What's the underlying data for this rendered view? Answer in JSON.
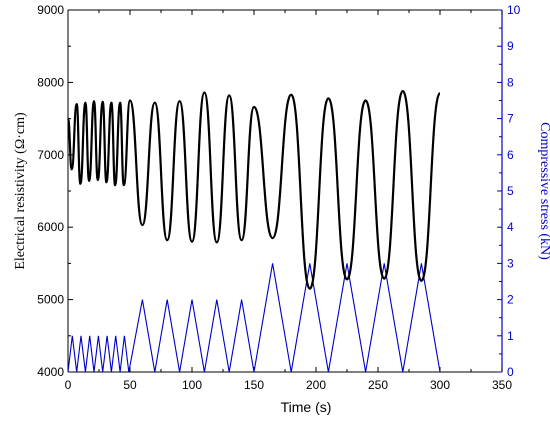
{
  "chart_data": {
    "type": "line",
    "xlabel": "Time (s)",
    "ylabel_left": "Electrical resistivity (Ω·cm)",
    "ylabel_right": "Compressive stress (kN)",
    "xlim": [
      0,
      350
    ],
    "ylim_left": [
      4000,
      9000
    ],
    "ylim_right": [
      0,
      10
    ],
    "x_ticks": [
      0,
      50,
      100,
      150,
      200,
      250,
      300,
      350
    ],
    "y_left_ticks": [
      4000,
      5000,
      6000,
      7000,
      8000,
      9000
    ],
    "y_right_ticks": [
      0,
      1,
      2,
      3,
      4,
      5,
      6,
      7,
      8,
      9,
      10
    ],
    "grid": false,
    "colors": {
      "resistivity": "#000000",
      "stress": "#0000cc",
      "axis_right": "#0000cc"
    },
    "series": [
      {
        "axis": "left",
        "x": [
          0,
          3,
          7,
          10,
          14,
          17,
          21,
          24,
          28,
          31,
          35,
          38,
          42,
          45,
          50,
          60,
          70,
          80,
          90,
          100,
          110,
          120,
          130,
          140,
          150,
          165,
          180,
          195,
          210,
          225,
          240,
          255,
          270,
          285,
          300
        ],
        "y": [
          7500,
          6800,
          7700,
          6600,
          7720,
          6640,
          7740,
          6650,
          7730,
          6620,
          7720,
          6580,
          7720,
          6580,
          7750,
          6030,
          7720,
          5820,
          7740,
          5800,
          7860,
          5790,
          7820,
          5820,
          7660,
          5850,
          7830,
          5150,
          7780,
          5280,
          7750,
          5290,
          7880,
          5260,
          7850
        ]
      },
      {
        "axis": "right",
        "x": [
          0,
          3.5,
          7,
          10.5,
          14,
          17.5,
          21,
          24.5,
          28,
          31.5,
          35,
          38.5,
          42,
          45.5,
          49,
          60,
          70,
          80,
          90,
          100,
          110,
          120,
          130,
          140,
          150,
          165,
          180,
          195,
          210,
          225,
          240,
          255,
          270,
          285,
          300
        ],
        "y": [
          0,
          1,
          0,
          1,
          0,
          1,
          0,
          1,
          0,
          1,
          0,
          1,
          0,
          1,
          0,
          2,
          0,
          2,
          0,
          2,
          0,
          2,
          0,
          2,
          0,
          3,
          0,
          3,
          0,
          3,
          0,
          3,
          0,
          3,
          0
        ]
      }
    ]
  }
}
